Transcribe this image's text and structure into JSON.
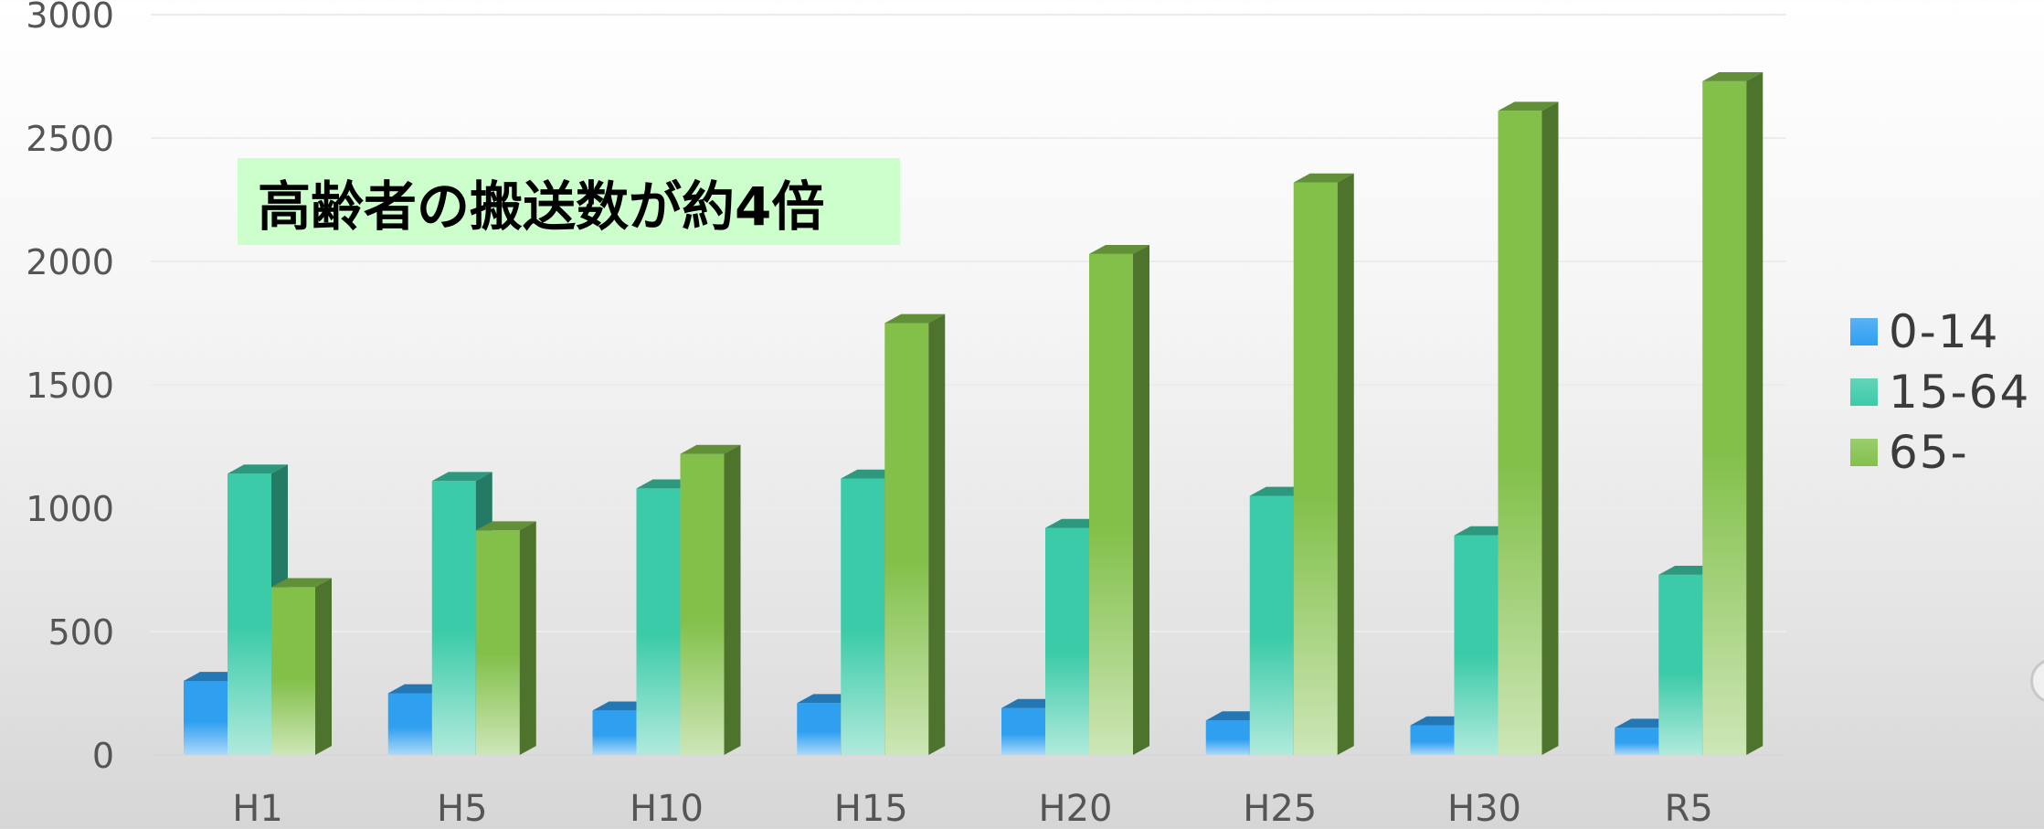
{
  "chart_data": {
    "type": "bar",
    "categories": [
      "H1",
      "H5",
      "H10",
      "H15",
      "H20",
      "H25",
      "H30",
      "R5"
    ],
    "series": [
      {
        "name": "0-14",
        "values": [
          300,
          250,
          180,
          210,
          190,
          140,
          120,
          110
        ],
        "color": "#2f9ff0"
      },
      {
        "name": "15-64",
        "values": [
          1140,
          1110,
          1080,
          1120,
          920,
          1050,
          890,
          730
        ],
        "color": "#3ccba8"
      },
      {
        "name": "65-",
        "values": [
          680,
          910,
          1220,
          1750,
          2030,
          2320,
          2610,
          2730
        ],
        "color": "#82c04a"
      }
    ],
    "yticks": [
      0,
      500,
      1000,
      1500,
      2000,
      2500,
      3000
    ],
    "ylim": [
      0,
      3000
    ],
    "grid": true,
    "legend_position": "right",
    "annotation": "高齢者の搬送数が約4倍"
  }
}
